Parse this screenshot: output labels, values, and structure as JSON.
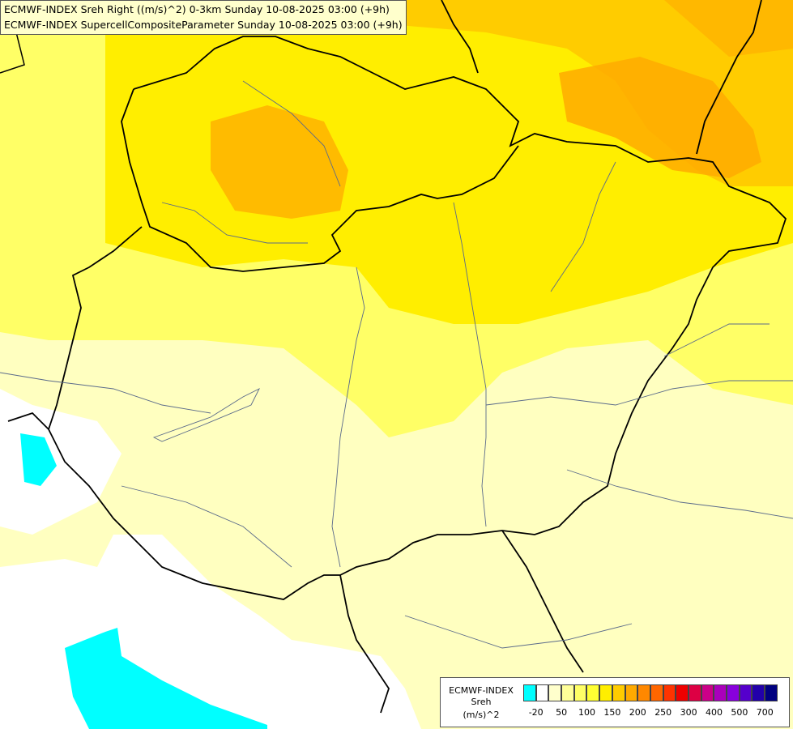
{
  "header": {
    "line1": "ECMWF-INDEX Sreh Right ((m/s)^2) 0-3km Sunday 10-08-2025 03:00 (+9h)",
    "line2": "ECMWF-INDEX SupercellCompositeParameter Sunday 10-08-2025 03:00 (+9h)"
  },
  "legend": {
    "title": "ECMWF-INDEX",
    "variable": "Sreh",
    "unit": "(m/s)^2",
    "ticks": [
      "-20",
      "50",
      "100",
      "150",
      "200",
      "250",
      "300",
      "400",
      "500",
      "700"
    ],
    "colors": [
      "#00ffff",
      "#ffffff",
      "#ffffcc",
      "#ffff99",
      "#ffff66",
      "#ffff33",
      "#ffee00",
      "#ffcc00",
      "#ffaa00",
      "#ff8800",
      "#ff6600",
      "#ff3300",
      "#ee0000",
      "#dd0044",
      "#cc0088",
      "#aa00bb",
      "#8800dd",
      "#5500cc",
      "#2200aa",
      "#000080"
    ]
  }
}
